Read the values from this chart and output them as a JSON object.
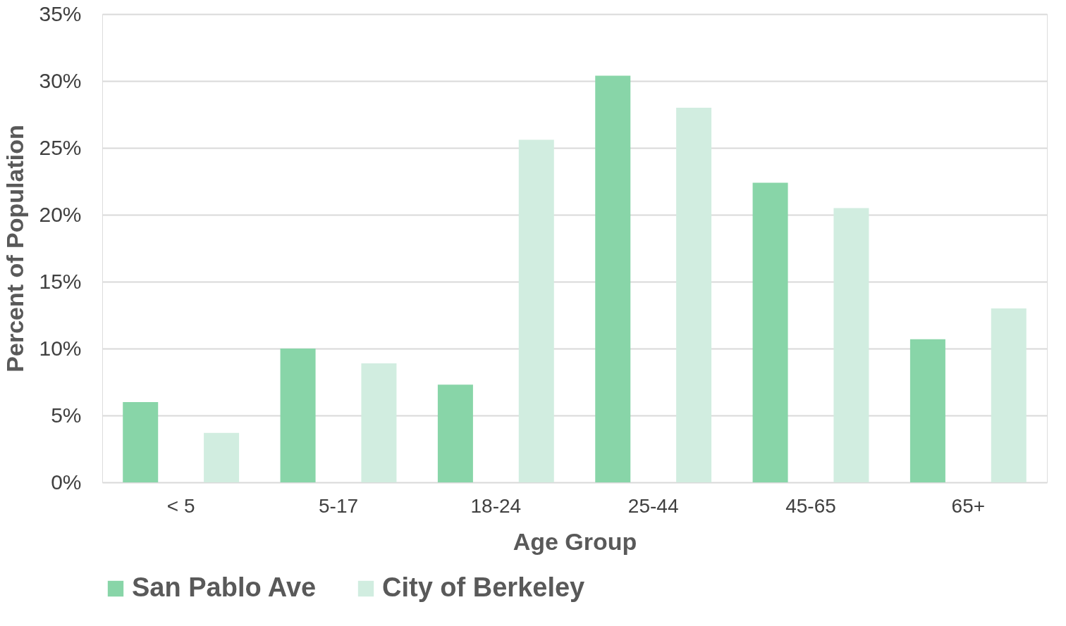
{
  "chart_data": {
    "type": "bar",
    "xlabel": "Age Group",
    "ylabel": "Percent of Population",
    "categories": [
      "< 5",
      "5-17",
      "18-24",
      "25-44",
      "45-65",
      "65+"
    ],
    "series": [
      {
        "name": "San Pablo Ave",
        "color": "#88d5a8",
        "values": [
          6.0,
          10.0,
          7.3,
          30.4,
          22.4,
          10.7
        ]
      },
      {
        "name": "City of Berkeley",
        "color": "#d1ede0",
        "values": [
          3.7,
          8.9,
          25.6,
          28.0,
          20.5,
          13.0
        ]
      }
    ],
    "ylim": [
      0,
      35
    ],
    "yticks": [
      {
        "value": 0,
        "label": "0%"
      },
      {
        "value": 5,
        "label": "5%"
      },
      {
        "value": 10,
        "label": "10%"
      },
      {
        "value": 15,
        "label": "15%"
      },
      {
        "value": 20,
        "label": "20%"
      },
      {
        "value": 25,
        "label": "25%"
      },
      {
        "value": 30,
        "label": "30%"
      },
      {
        "value": 35,
        "label": "35%"
      }
    ],
    "grid": "y",
    "legend": "bottom"
  }
}
